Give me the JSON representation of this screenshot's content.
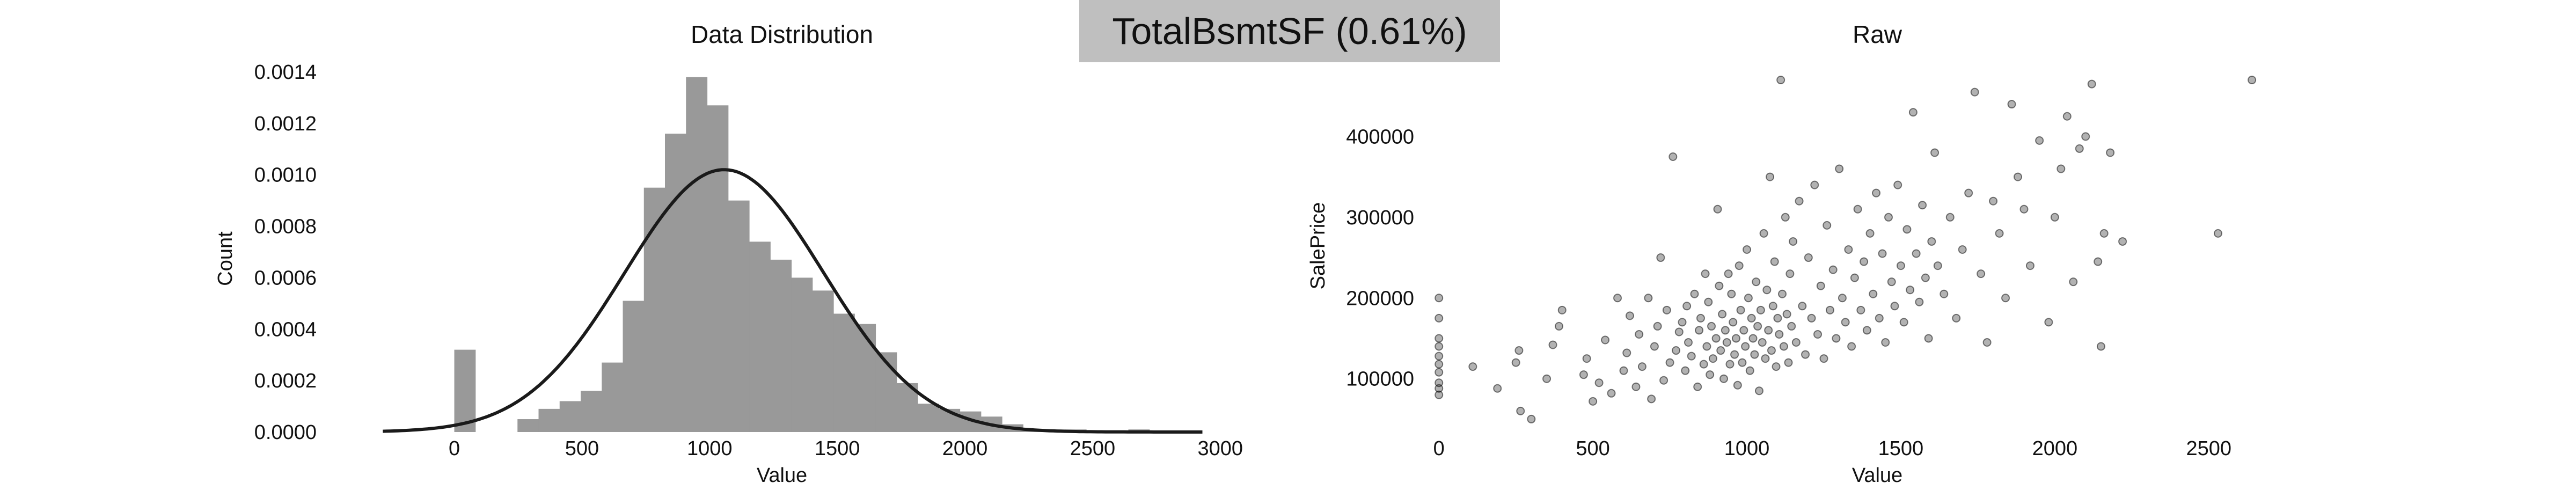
{
  "figure": {
    "suptitle": "TotalBsmtSF (0.61%)",
    "suptitle_bg": "#bfbfbf"
  },
  "chart_data": [
    {
      "type": "bar",
      "subtype": "histogram_with_density_curve",
      "title": "Data Distribution",
      "xlabel": "Value",
      "ylabel": "Count",
      "xlim": [
        -350,
        2950
      ],
      "ylim": [
        0,
        0.0014
      ],
      "xticks": [
        0,
        500,
        1000,
        1500,
        2000,
        2500,
        3000
      ],
      "yticks": [
        0.0,
        0.0002,
        0.0004,
        0.0006,
        0.0008,
        0.001,
        0.0012,
        0.0014
      ],
      "ytick_labels": [
        "0.0000",
        "0.0002",
        "0.0004",
        "0.0006",
        "0.0008",
        "0.0010",
        "0.0012",
        "0.0014"
      ],
      "bin_width": 82.5,
      "bins_start": [
        0,
        82.5,
        165,
        247.5,
        330,
        412.5,
        495,
        577.5,
        660,
        742.5,
        825,
        907.5,
        990,
        1072.5,
        1155,
        1237.5,
        1320,
        1402.5,
        1485,
        1567.5,
        1650,
        1732.5,
        1815,
        1897.5,
        1980,
        2062.5,
        2145,
        2227.5,
        2310,
        2392.5,
        2475,
        2557.5,
        2640
      ],
      "values": [
        0.00032,
        0.0,
        0.0,
        5e-05,
        9e-05,
        0.00012,
        0.00016,
        0.00027,
        0.00051,
        0.00095,
        0.00116,
        0.00138,
        0.00127,
        0.0009,
        0.00074,
        0.00067,
        0.0006,
        0.00055,
        0.00046,
        0.00042,
        0.00031,
        0.00019,
        0.00011,
        9e-05,
        8e-05,
        6e-05,
        3e-05,
        1e-05,
        1e-05,
        1e-05,
        0.0,
        0.0,
        1e-05
      ],
      "bar_color": "#999999",
      "curve": {
        "type": "normal_pdf",
        "mean": 1057,
        "std": 390,
        "peak": 0.00102,
        "range": [
          -280,
          2930
        ],
        "color": "#1a1a1a"
      }
    },
    {
      "type": "scatter",
      "title": "Raw",
      "xlabel": "Value",
      "ylabel": "SalePrice",
      "xlim": [
        -30,
        2720
      ],
      "ylim": [
        34000,
        480000
      ],
      "xticks": [
        0,
        500,
        1000,
        1500,
        2000,
        2500
      ],
      "yticks": [
        100000,
        200000,
        300000,
        400000
      ],
      "point_color": "#000000",
      "point_opacity": 0.3,
      "points": [
        [
          0,
          200000
        ],
        [
          0,
          175000
        ],
        [
          0,
          150000
        ],
        [
          0,
          140000
        ],
        [
          0,
          128000
        ],
        [
          0,
          118000
        ],
        [
          0,
          108000
        ],
        [
          0,
          95000
        ],
        [
          0,
          88000
        ],
        [
          0,
          80000
        ],
        [
          110,
          115000
        ],
        [
          190,
          88000
        ],
        [
          250,
          120000
        ],
        [
          260,
          135000
        ],
        [
          265,
          60000
        ],
        [
          300,
          50000
        ],
        [
          350,
          100000
        ],
        [
          370,
          142000
        ],
        [
          390,
          165000
        ],
        [
          400,
          185000
        ],
        [
          470,
          105000
        ],
        [
          480,
          125000
        ],
        [
          500,
          72000
        ],
        [
          520,
          95000
        ],
        [
          540,
          148000
        ],
        [
          560,
          82000
        ],
        [
          580,
          200000
        ],
        [
          600,
          110000
        ],
        [
          610,
          132000
        ],
        [
          620,
          178000
        ],
        [
          640,
          90000
        ],
        [
          650,
          155000
        ],
        [
          660,
          115000
        ],
        [
          680,
          200000
        ],
        [
          690,
          75000
        ],
        [
          700,
          140000
        ],
        [
          710,
          165000
        ],
        [
          720,
          250000
        ],
        [
          730,
          98000
        ],
        [
          740,
          185000
        ],
        [
          750,
          120000
        ],
        [
          760,
          375000
        ],
        [
          770,
          135000
        ],
        [
          780,
          158000
        ],
        [
          790,
          170000
        ],
        [
          800,
          110000
        ],
        [
          805,
          190000
        ],
        [
          810,
          145000
        ],
        [
          820,
          128000
        ],
        [
          830,
          205000
        ],
        [
          840,
          90000
        ],
        [
          845,
          160000
        ],
        [
          850,
          175000
        ],
        [
          860,
          118000
        ],
        [
          865,
          230000
        ],
        [
          870,
          140000
        ],
        [
          875,
          195000
        ],
        [
          880,
          105000
        ],
        [
          885,
          165000
        ],
        [
          890,
          125000
        ],
        [
          900,
          150000
        ],
        [
          905,
          310000
        ],
        [
          910,
          215000
        ],
        [
          915,
          135000
        ],
        [
          920,
          180000
        ],
        [
          925,
          100000
        ],
        [
          930,
          160000
        ],
        [
          935,
          145000
        ],
        [
          940,
          230000
        ],
        [
          945,
          118000
        ],
        [
          950,
          205000
        ],
        [
          955,
          170000
        ],
        [
          960,
          130000
        ],
        [
          965,
          150000
        ],
        [
          970,
          92000
        ],
        [
          975,
          240000
        ],
        [
          980,
          185000
        ],
        [
          985,
          120000
        ],
        [
          990,
          160000
        ],
        [
          995,
          140000
        ],
        [
          1000,
          260000
        ],
        [
          1005,
          200000
        ],
        [
          1010,
          110000
        ],
        [
          1015,
          175000
        ],
        [
          1020,
          150000
        ],
        [
          1025,
          130000
        ],
        [
          1030,
          220000
        ],
        [
          1035,
          165000
        ],
        [
          1040,
          85000
        ],
        [
          1045,
          185000
        ],
        [
          1050,
          145000
        ],
        [
          1055,
          280000
        ],
        [
          1060,
          125000
        ],
        [
          1065,
          210000
        ],
        [
          1070,
          160000
        ],
        [
          1075,
          350000
        ],
        [
          1080,
          135000
        ],
        [
          1085,
          190000
        ],
        [
          1090,
          245000
        ],
        [
          1095,
          115000
        ],
        [
          1100,
          175000
        ],
        [
          1105,
          155000
        ],
        [
          1110,
          470000
        ],
        [
          1115,
          205000
        ],
        [
          1120,
          140000
        ],
        [
          1125,
          300000
        ],
        [
          1130,
          180000
        ],
        [
          1135,
          120000
        ],
        [
          1140,
          230000
        ],
        [
          1145,
          165000
        ],
        [
          1150,
          270000
        ],
        [
          1160,
          145000
        ],
        [
          1170,
          320000
        ],
        [
          1180,
          190000
        ],
        [
          1190,
          130000
        ],
        [
          1200,
          250000
        ],
        [
          1210,
          175000
        ],
        [
          1220,
          340000
        ],
        [
          1230,
          155000
        ],
        [
          1240,
          215000
        ],
        [
          1250,
          125000
        ],
        [
          1260,
          290000
        ],
        [
          1270,
          185000
        ],
        [
          1280,
          235000
        ],
        [
          1290,
          150000
        ],
        [
          1300,
          360000
        ],
        [
          1310,
          200000
        ],
        [
          1320,
          170000
        ],
        [
          1330,
          260000
        ],
        [
          1340,
          140000
        ],
        [
          1350,
          225000
        ],
        [
          1360,
          310000
        ],
        [
          1370,
          185000
        ],
        [
          1380,
          245000
        ],
        [
          1390,
          160000
        ],
        [
          1400,
          280000
        ],
        [
          1410,
          205000
        ],
        [
          1420,
          330000
        ],
        [
          1430,
          175000
        ],
        [
          1440,
          255000
        ],
        [
          1450,
          145000
        ],
        [
          1460,
          300000
        ],
        [
          1470,
          220000
        ],
        [
          1480,
          190000
        ],
        [
          1490,
          340000
        ],
        [
          1500,
          240000
        ],
        [
          1510,
          170000
        ],
        [
          1520,
          285000
        ],
        [
          1530,
          210000
        ],
        [
          1540,
          430000
        ],
        [
          1550,
          255000
        ],
        [
          1560,
          195000
        ],
        [
          1570,
          315000
        ],
        [
          1580,
          225000
        ],
        [
          1590,
          150000
        ],
        [
          1600,
          270000
        ],
        [
          1610,
          380000
        ],
        [
          1620,
          240000
        ],
        [
          1640,
          205000
        ],
        [
          1660,
          300000
        ],
        [
          1680,
          175000
        ],
        [
          1700,
          260000
        ],
        [
          1720,
          330000
        ],
        [
          1740,
          455000
        ],
        [
          1760,
          230000
        ],
        [
          1780,
          145000
        ],
        [
          1800,
          320000
        ],
        [
          1820,
          280000
        ],
        [
          1840,
          200000
        ],
        [
          1860,
          440000
        ],
        [
          1880,
          350000
        ],
        [
          1900,
          310000
        ],
        [
          1920,
          240000
        ],
        [
          1950,
          395000
        ],
        [
          1980,
          170000
        ],
        [
          2000,
          300000
        ],
        [
          2020,
          360000
        ],
        [
          2040,
          425000
        ],
        [
          2060,
          220000
        ],
        [
          2080,
          385000
        ],
        [
          2100,
          400000
        ],
        [
          2120,
          465000
        ],
        [
          2140,
          245000
        ],
        [
          2150,
          140000
        ],
        [
          2160,
          280000
        ],
        [
          2180,
          380000
        ],
        [
          2220,
          270000
        ],
        [
          2530,
          280000
        ],
        [
          2640,
          470000
        ]
      ]
    }
  ]
}
